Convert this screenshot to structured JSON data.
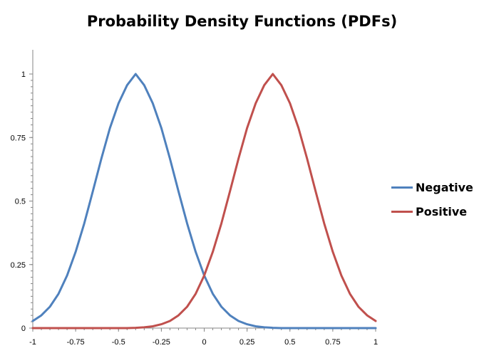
{
  "chart_data": {
    "type": "line",
    "title": "Probability Density Functions (PDFs)",
    "xlabel": "",
    "ylabel": "",
    "xlim": [
      -1,
      1
    ],
    "ylim": [
      0,
      1.0
    ],
    "x_ticks": [
      "-1",
      "-0.75",
      "-0.5",
      "-0.25",
      "0",
      "0.25",
      "0.5",
      "0.75",
      "1"
    ],
    "x_tick_values": [
      -1,
      -0.75,
      -0.5,
      -0.25,
      0,
      0.25,
      0.5,
      0.75,
      1
    ],
    "y_ticks": [
      "0",
      "0.25",
      "0.5",
      "0.75",
      "1"
    ],
    "y_tick_values": [
      0,
      0.25,
      0.5,
      0.75,
      1
    ],
    "grid": false,
    "legend_position": "right",
    "series": [
      {
        "name": "Negative",
        "color": "#4F81BD",
        "x": [
          -1.0,
          -0.95,
          -0.9,
          -0.85,
          -0.8,
          -0.75,
          -0.7,
          -0.65,
          -0.6,
          -0.55,
          -0.5,
          -0.45,
          -0.4,
          -0.35,
          -0.3,
          -0.25,
          -0.2,
          -0.15,
          -0.1,
          -0.05,
          0.0,
          0.05,
          0.1,
          0.15,
          0.2,
          0.25,
          0.3,
          0.35,
          0.4,
          0.45,
          0.5,
          0.55,
          0.6,
          0.65,
          0.7,
          0.75,
          0.8,
          0.85,
          0.9,
          0.95,
          1.0
        ],
        "y": [
          0.028,
          0.05,
          0.084,
          0.135,
          0.207,
          0.3,
          0.412,
          0.538,
          0.667,
          0.787,
          0.885,
          0.956,
          1.0,
          0.956,
          0.885,
          0.787,
          0.667,
          0.538,
          0.412,
          0.3,
          0.207,
          0.135,
          0.084,
          0.05,
          0.028,
          0.015,
          0.007,
          0.003,
          0.001,
          0.0,
          0.0,
          0.0,
          0.0,
          0.0,
          0.0,
          0.0,
          0.0,
          0.0,
          0.0,
          0.0,
          0.0
        ]
      },
      {
        "name": "Positive",
        "color": "#C0504D",
        "x": [
          -1.0,
          -0.95,
          -0.9,
          -0.85,
          -0.8,
          -0.75,
          -0.7,
          -0.65,
          -0.6,
          -0.55,
          -0.5,
          -0.45,
          -0.4,
          -0.35,
          -0.3,
          -0.25,
          -0.2,
          -0.15,
          -0.1,
          -0.05,
          0.0,
          0.05,
          0.1,
          0.15,
          0.2,
          0.25,
          0.3,
          0.35,
          0.4,
          0.45,
          0.5,
          0.55,
          0.6,
          0.65,
          0.7,
          0.75,
          0.8,
          0.85,
          0.9,
          0.95,
          1.0
        ],
        "y": [
          0.0,
          0.0,
          0.0,
          0.0,
          0.0,
          0.0,
          0.0,
          0.0,
          0.0,
          0.0,
          0.0,
          0.0,
          0.001,
          0.003,
          0.007,
          0.015,
          0.028,
          0.05,
          0.084,
          0.135,
          0.207,
          0.3,
          0.412,
          0.538,
          0.667,
          0.787,
          0.885,
          0.956,
          1.0,
          0.956,
          0.885,
          0.787,
          0.667,
          0.538,
          0.412,
          0.3,
          0.207,
          0.135,
          0.084,
          0.05,
          0.028
        ]
      }
    ]
  }
}
